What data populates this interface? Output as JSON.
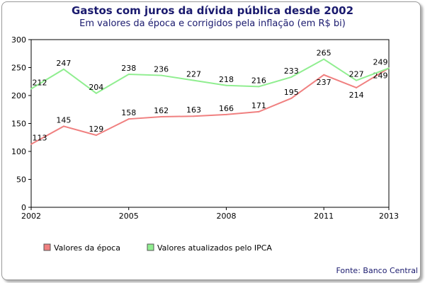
{
  "chart_data": {
    "type": "line",
    "title": "Gastos com juros da dívida pública desde 2002",
    "subtitle": "Em valores da época e corrigidos pela inflação (em R$ bi)",
    "x": [
      2002,
      2003,
      2004,
      2005,
      2006,
      2007,
      2008,
      2009,
      2010,
      2011,
      2012,
      2013
    ],
    "xticks": [
      "2002",
      "2005",
      "2008",
      "2011",
      "2013"
    ],
    "yticks": [
      "0",
      "50",
      "100",
      "150",
      "200",
      "250",
      "300"
    ],
    "ylim": [
      0,
      300
    ],
    "xlim": [
      2002,
      2013
    ],
    "grid": false,
    "legend_placement": "bottom",
    "series": [
      {
        "name": "Valores da época",
        "color": "#f08080",
        "values": [
          113,
          145,
          129,
          158,
          162,
          163,
          166,
          171,
          195,
          237,
          214,
          249
        ]
      },
      {
        "name": "Valores atualizados pelo IPCA",
        "color": "#90ee90",
        "values": [
          212,
          247,
          204,
          238,
          236,
          227,
          218,
          216,
          233,
          265,
          227,
          249
        ]
      }
    ],
    "source": "Fonte: Banco Central"
  }
}
